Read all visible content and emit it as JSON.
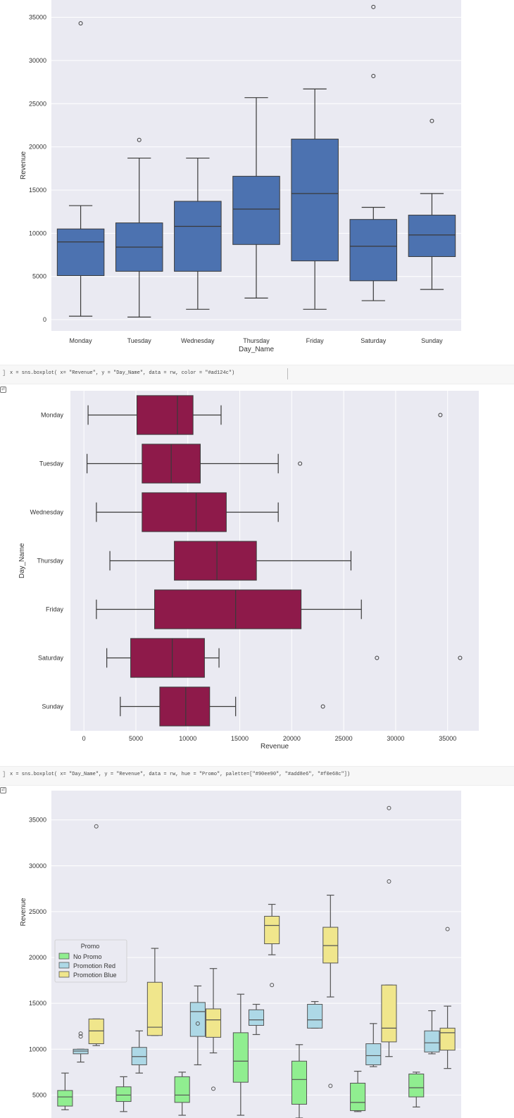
{
  "colors": {
    "plot_bg": "#EAEAF2",
    "grid": "#FFFFFF",
    "box_blue": "#4C72B0",
    "box_crimson": "#8E1A4A",
    "no_promo": "#90EE90",
    "promotion_red": "#ADD8E6",
    "promotion_blue": "#F0E68C"
  },
  "code_cells": [
    {
      "bracket": "]",
      "code": "x = sns.boxplot( x= \"Revenue\", y = \"Day_Name\", data = rw, color = \"#ad124c\")"
    },
    {
      "bracket": "]",
      "code": "x = sns.boxplot( x= \"Day_Name\", y = \"Revenue\", data = rw, hue = \"Promo\", palette=[\"#90ee90\", \"#add8e6\", \"#f0e68c\"])"
    }
  ],
  "chart_data": [
    {
      "type": "box",
      "orientation": "vertical",
      "xlabel": "Day_Name",
      "ylabel": "Revenue",
      "categories": [
        "Monday",
        "Tuesday",
        "Wednesday",
        "Thursday",
        "Friday",
        "Saturday",
        "Sunday"
      ],
      "yticks": [
        0,
        5000,
        10000,
        15000,
        20000,
        25000,
        30000,
        35000
      ],
      "ylim": [
        -1300,
        37000
      ],
      "boxes": [
        {
          "min": 400,
          "q1": 5100,
          "median": 9000,
          "q3": 10500,
          "max": 13200,
          "outliers": [
            34300
          ]
        },
        {
          "min": 300,
          "q1": 5600,
          "median": 8400,
          "q3": 11200,
          "max": 18700,
          "outliers": [
            20800
          ]
        },
        {
          "min": 1200,
          "q1": 5600,
          "median": 10800,
          "q3": 13700,
          "max": 18700,
          "outliers": []
        },
        {
          "min": 2500,
          "q1": 8700,
          "median": 12800,
          "q3": 16600,
          "max": 25700,
          "outliers": []
        },
        {
          "min": 1200,
          "q1": 6800,
          "median": 14600,
          "q3": 20900,
          "max": 26700,
          "outliers": []
        },
        {
          "min": 2200,
          "q1": 4500,
          "median": 8500,
          "q3": 11600,
          "max": 13000,
          "outliers": [
            28200,
            36200
          ]
        },
        {
          "min": 3500,
          "q1": 7300,
          "median": 9800,
          "q3": 12100,
          "max": 14600,
          "outliers": [
            23000
          ]
        }
      ]
    },
    {
      "type": "box",
      "orientation": "horizontal",
      "xlabel": "Revenue",
      "ylabel": "Day_Name",
      "categories": [
        "Monday",
        "Tuesday",
        "Wednesday",
        "Thursday",
        "Friday",
        "Saturday",
        "Sunday"
      ],
      "xticks": [
        0,
        5000,
        10000,
        15000,
        20000,
        25000,
        30000,
        35000
      ],
      "xlim": [
        -1300,
        38000
      ],
      "boxes": [
        {
          "min": 400,
          "q1": 5100,
          "median": 9000,
          "q3": 10500,
          "max": 13200,
          "outliers": [
            34300
          ]
        },
        {
          "min": 300,
          "q1": 5600,
          "median": 8400,
          "q3": 11200,
          "max": 18700,
          "outliers": [
            20800
          ]
        },
        {
          "min": 1200,
          "q1": 5600,
          "median": 10800,
          "q3": 13700,
          "max": 18700,
          "outliers": []
        },
        {
          "min": 2500,
          "q1": 8700,
          "median": 12800,
          "q3": 16600,
          "max": 25700,
          "outliers": []
        },
        {
          "min": 1200,
          "q1": 6800,
          "median": 14600,
          "q3": 20900,
          "max": 26700,
          "outliers": []
        },
        {
          "min": 2200,
          "q1": 4500,
          "median": 8500,
          "q3": 11600,
          "max": 13000,
          "outliers": [
            28200,
            36200
          ]
        },
        {
          "min": 3500,
          "q1": 7300,
          "median": 9800,
          "q3": 12100,
          "max": 14600,
          "outliers": [
            23000
          ]
        }
      ]
    },
    {
      "type": "box",
      "orientation": "vertical",
      "ylabel": "Revenue",
      "legend_title": "Promo",
      "legend_position": "middle-left",
      "yticks": [
        5000,
        10000,
        15000,
        20000,
        25000,
        30000,
        35000
      ],
      "ylim": [
        2500,
        38200
      ],
      "series": [
        {
          "name": "No Promo",
          "color": "#90EE90",
          "boxes": [
            {
              "min": 3400,
              "q1": 3800,
              "median": 4800,
              "q3": 5500,
              "max": 7400,
              "outliers": []
            },
            {
              "min": 3200,
              "q1": 4300,
              "median": 5000,
              "q3": 5900,
              "max": 7000,
              "outliers": []
            },
            {
              "min": 2800,
              "q1": 4200,
              "median": 5000,
              "q3": 7000,
              "max": 7500,
              "outliers": []
            },
            {
              "min": 2800,
              "q1": 6400,
              "median": 8700,
              "q3": 11800,
              "max": 16000,
              "outliers": []
            },
            {
              "min": 2500,
              "q1": 4000,
              "median": 6700,
              "q3": 8700,
              "max": 10500,
              "outliers": []
            },
            {
              "min": 3200,
              "q1": 3300,
              "median": 4200,
              "q3": 6300,
              "max": 7600,
              "outliers": []
            },
            {
              "min": 3700,
              "q1": 4800,
              "median": 5800,
              "q3": 7300,
              "max": 7500,
              "outliers": []
            }
          ]
        },
        {
          "name": "Promotion Red",
          "color": "#ADD8E6",
          "boxes": [
            {
              "min": 8600,
              "q1": 9500,
              "median": 9800,
              "q3": 10000,
              "max": 10000,
              "outliers": [
                11400,
                11700
              ]
            },
            {
              "min": 7400,
              "q1": 8300,
              "median": 9200,
              "q3": 10200,
              "max": 12000,
              "outliers": []
            },
            {
              "min": 8300,
              "q1": 11400,
              "median": 14100,
              "q3": 15100,
              "max": 16900,
              "outliers": [
                12800
              ]
            },
            {
              "min": 11600,
              "q1": 12600,
              "median": 13200,
              "q3": 14300,
              "max": 14900,
              "outliers": []
            },
            {
              "min": 12300,
              "q1": 12300,
              "median": 13200,
              "q3": 14900,
              "max": 15200,
              "outliers": []
            },
            {
              "min": 8100,
              "q1": 8300,
              "median": 9300,
              "q3": 10600,
              "max": 12800,
              "outliers": []
            },
            {
              "min": 9500,
              "q1": 9700,
              "median": 10700,
              "q3": 12000,
              "max": 14200,
              "outliers": []
            }
          ]
        },
        {
          "name": "Promotion Blue",
          "color": "#F0E68C",
          "boxes": [
            {
              "min": 10400,
              "q1": 10600,
              "median": 12000,
              "q3": 13300,
              "max": 13300,
              "outliers": [
                34300
              ]
            },
            {
              "min": 11500,
              "q1": 11500,
              "median": 12400,
              "q3": 17300,
              "max": 21000,
              "outliers": []
            },
            {
              "min": 9600,
              "q1": 11300,
              "median": 13200,
              "q3": 14400,
              "max": 18800,
              "outliers": [
                5700
              ]
            },
            {
              "min": 20300,
              "q1": 21500,
              "median": 23500,
              "q3": 24500,
              "max": 25800,
              "outliers": [
                17000
              ]
            },
            {
              "min": 15700,
              "q1": 19400,
              "median": 21300,
              "q3": 23300,
              "max": 26800,
              "outliers": [
                6000
              ]
            },
            {
              "min": 9200,
              "q1": 10800,
              "median": 12300,
              "q3": 17000,
              "max": 17000,
              "outliers": [
                28300,
                36300
              ]
            },
            {
              "min": 7900,
              "q1": 9900,
              "median": 11800,
              "q3": 12300,
              "max": 14700,
              "outliers": [
                23100
              ]
            }
          ]
        }
      ]
    }
  ]
}
